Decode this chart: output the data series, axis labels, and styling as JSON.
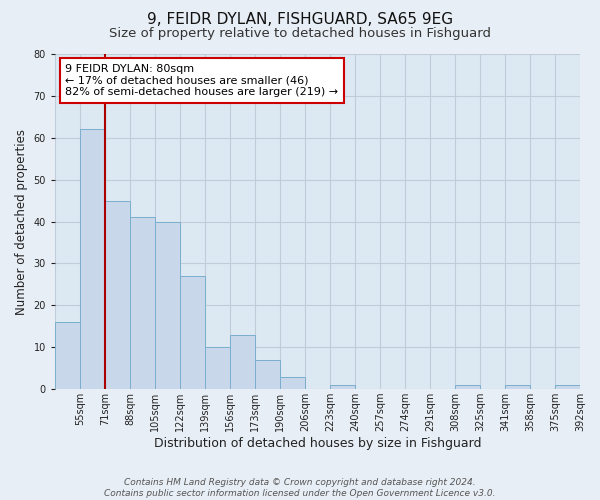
{
  "title": "9, FEIDR DYLAN, FISHGUARD, SA65 9EG",
  "subtitle": "Size of property relative to detached houses in Fishguard",
  "xlabel": "Distribution of detached houses by size in Fishguard",
  "ylabel": "Number of detached properties",
  "categories": [
    "55sqm",
    "71sqm",
    "88sqm",
    "105sqm",
    "122sqm",
    "139sqm",
    "156sqm",
    "173sqm",
    "190sqm",
    "206sqm",
    "223sqm",
    "240sqm",
    "257sqm",
    "274sqm",
    "291sqm",
    "308sqm",
    "325sqm",
    "341sqm",
    "358sqm",
    "375sqm",
    "392sqm"
  ],
  "values": [
    16,
    62,
    45,
    41,
    40,
    27,
    10,
    13,
    7,
    3,
    0,
    1,
    0,
    0,
    0,
    0,
    1,
    0,
    1,
    0,
    1
  ],
  "bar_color": "#c8d8ea",
  "bar_edge_color": "#7aaece",
  "highlight_line_color": "#aa0000",
  "ylim": [
    0,
    80
  ],
  "yticks": [
    0,
    10,
    20,
    30,
    40,
    50,
    60,
    70,
    80
  ],
  "annotation_text": "9 FEIDR DYLAN: 80sqm\n← 17% of detached houses are smaller (46)\n82% of semi-detached houses are larger (219) →",
  "annotation_box_color": "#ffffff",
  "annotation_box_edge_color": "#cc0000",
  "footer_line1": "Contains HM Land Registry data © Crown copyright and database right 2024.",
  "footer_line2": "Contains public sector information licensed under the Open Government Licence v3.0.",
  "background_color": "#e8eef5",
  "plot_background_color": "#dce8f2",
  "grid_color": "#c0ccd8",
  "title_fontsize": 11,
  "subtitle_fontsize": 9.5,
  "xlabel_fontsize": 9,
  "ylabel_fontsize": 8.5,
  "tick_fontsize": 7,
  "annotation_fontsize": 8,
  "footer_fontsize": 6.5
}
